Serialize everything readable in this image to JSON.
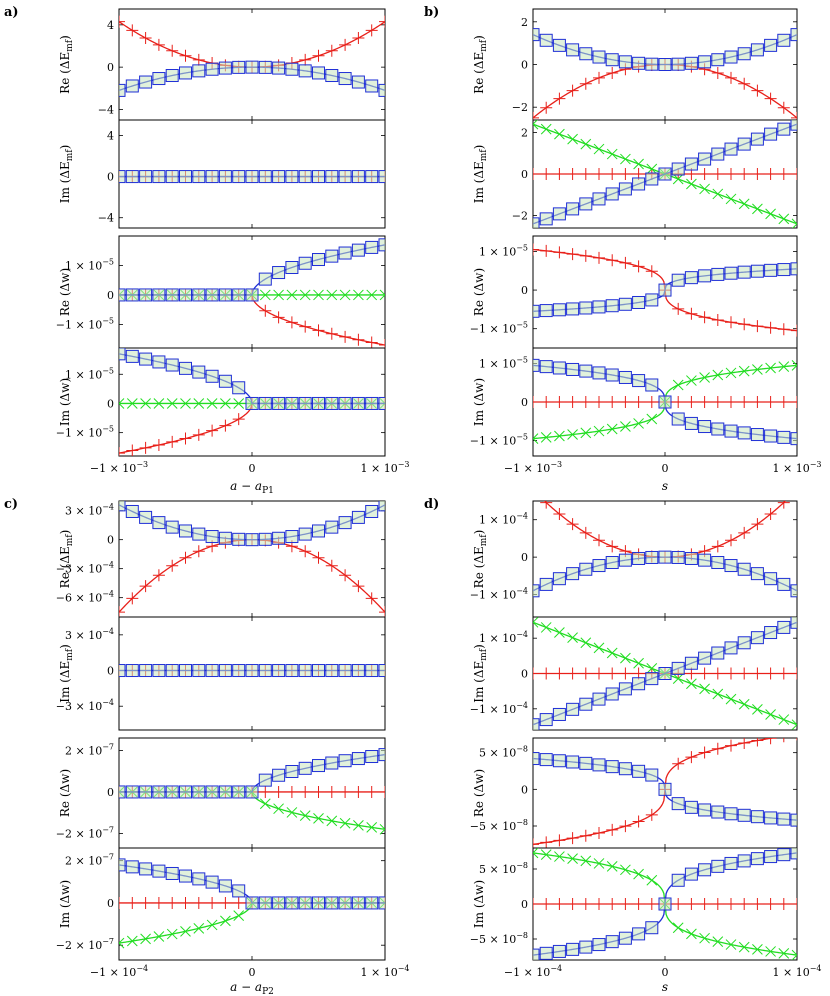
{
  "colors": {
    "red": "#e8201a",
    "blue": "#1f2fd6",
    "green": "#22dd22",
    "marker_fill": "#c8e6c0"
  },
  "chart_data": [
    {
      "panel": "a)",
      "type": "line",
      "xlabel_main": "a − a",
      "xlabel_sub": "P1",
      "xticks": [
        {
          "v": -1,
          "main": "−1 × 10",
          "exp": "−3"
        },
        {
          "v": 0,
          "main": "0",
          "exp": ""
        },
        {
          "v": 1,
          "main": "1 × 10",
          "exp": "−3"
        }
      ],
      "subplots": [
        {
          "ylabel": "Re (ΔE",
          "ysub": "mf",
          "ymin": -5,
          "ymax": 5.5,
          "yticks": [
            {
              "v": 4,
              "main": "4",
              "exp": ""
            },
            {
              "v": 0,
              "main": "0",
              "exp": ""
            },
            {
              "v": -4,
              "main": "−4",
              "exp": ""
            }
          ],
          "series": [
            {
              "color": "red",
              "marker": "plus",
              "kind": "poly",
              "c": [
                0,
                0,
                4.3
              ]
            },
            {
              "color": "blue",
              "marker": "square",
              "kind": "poly",
              "c": [
                0,
                0,
                -2.2
              ]
            }
          ]
        },
        {
          "ylabel": "Im (ΔE",
          "ysub": "mf",
          "ymin": -5,
          "ymax": 5.5,
          "yticks": [
            {
              "v": 4,
              "main": "4",
              "exp": ""
            },
            {
              "v": 0,
              "main": "0",
              "exp": ""
            },
            {
              "v": -4,
              "main": "−4",
              "exp": ""
            }
          ],
          "series": [
            {
              "color": "red",
              "marker": "plus",
              "kind": "poly",
              "c": [
                0,
                0,
                0
              ]
            },
            {
              "color": "blue",
              "marker": "square",
              "kind": "poly",
              "c": [
                0,
                0,
                0
              ]
            }
          ]
        },
        {
          "ylabel": "Re (Δw)",
          "ysub": "",
          "ymin": -1.8,
          "ymax": 2.0,
          "yticks": [
            {
              "v": 1,
              "main": "1 × 10",
              "exp": "−5"
            },
            {
              "v": 0,
              "main": "0",
              "exp": ""
            },
            {
              "v": -1,
              "main": "−1 × 10",
              "exp": "−5"
            }
          ],
          "series": [
            {
              "color": "red",
              "marker": "plus",
              "kind": "sqrt",
              "side": 1,
              "k": -1.7
            },
            {
              "color": "green",
              "marker": "cross",
              "kind": "poly",
              "c": [
                0,
                0,
                0
              ]
            },
            {
              "color": "blue",
              "marker": "square",
              "kind": "sqrt",
              "side": 1,
              "k": 1.7
            }
          ]
        },
        {
          "ylabel": "Im (Δw)",
          "ysub": "",
          "ymin": -1.8,
          "ymax": 1.9,
          "yticks": [
            {
              "v": 1,
              "main": "1 × 10",
              "exp": "−5"
            },
            {
              "v": 0,
              "main": "0",
              "exp": ""
            },
            {
              "v": -1,
              "main": "−1 × 10",
              "exp": "−5"
            }
          ],
          "series": [
            {
              "color": "red",
              "marker": "plus",
              "kind": "sqrt",
              "side": -1,
              "k": -1.7
            },
            {
              "color": "green",
              "marker": "cross",
              "kind": "poly",
              "c": [
                0,
                0,
                0
              ]
            },
            {
              "color": "blue",
              "marker": "square",
              "kind": "sqrt",
              "side": -1,
              "k": 1.7
            }
          ]
        }
      ]
    },
    {
      "panel": "b)",
      "type": "line",
      "xlabel_main": "s",
      "xlabel_sub": "",
      "xticks": [
        {
          "v": -1,
          "main": "−1 × 10",
          "exp": "−3"
        },
        {
          "v": 0,
          "main": "0",
          "exp": ""
        },
        {
          "v": 1,
          "main": "1 × 10",
          "exp": "−3"
        }
      ],
      "subplots": [
        {
          "ylabel": "Re (ΔE",
          "ysub": "mf",
          "ymin": -2.6,
          "ymax": 2.6,
          "yticks": [
            {
              "v": 2,
              "main": "2",
              "exp": ""
            },
            {
              "v": 0,
              "main": "0",
              "exp": ""
            },
            {
              "v": -2,
              "main": "−2",
              "exp": ""
            }
          ],
          "series": [
            {
              "color": "red",
              "marker": "plus",
              "kind": "poly",
              "c": [
                0,
                0,
                -2.5
              ]
            },
            {
              "color": "blue",
              "marker": "square",
              "kind": "poly",
              "c": [
                0,
                0,
                1.4
              ]
            }
          ]
        },
        {
          "ylabel": "Im (ΔE",
          "ysub": "mf",
          "ymin": -2.6,
          "ymax": 2.6,
          "yticks": [
            {
              "v": 2,
              "main": "2",
              "exp": ""
            },
            {
              "v": 0,
              "main": "0",
              "exp": ""
            },
            {
              "v": -2,
              "main": "−2",
              "exp": ""
            }
          ],
          "series": [
            {
              "color": "red",
              "marker": "plus",
              "kind": "poly",
              "c": [
                0,
                0,
                0
              ]
            },
            {
              "color": "green",
              "marker": "cross",
              "kind": "poly",
              "c": [
                0,
                -2.4,
                0
              ]
            },
            {
              "color": "blue",
              "marker": "square",
              "kind": "poly",
              "c": [
                0,
                2.4,
                0
              ]
            }
          ]
        },
        {
          "ylabel": "Re (Δw)",
          "ysub": "",
          "ymin": -1.5,
          "ymax": 1.4,
          "yticks": [
            {
              "v": 1,
              "main": "1 × 10",
              "exp": "−5"
            },
            {
              "v": 0,
              "main": "0",
              "exp": ""
            },
            {
              "v": -1,
              "main": "−1 × 10",
              "exp": "−5"
            }
          ],
          "series": [
            {
              "color": "red",
              "marker": "plus",
              "kind": "cbrt",
              "k": -1.05
            },
            {
              "color": "blue",
              "marker": "square",
              "kind": "cbrt",
              "k": 0.55
            }
          ]
        },
        {
          "ylabel": "Im (Δw)",
          "ysub": "",
          "ymin": -1.4,
          "ymax": 1.4,
          "yticks": [
            {
              "v": 1,
              "main": "1 × 10",
              "exp": "−5"
            },
            {
              "v": 0,
              "main": "0",
              "exp": ""
            },
            {
              "v": -1,
              "main": "−1 × 10",
              "exp": "−5"
            }
          ],
          "series": [
            {
              "color": "red",
              "marker": "plus",
              "kind": "poly",
              "c": [
                0,
                0,
                0
              ]
            },
            {
              "color": "green",
              "marker": "cross",
              "kind": "cbrt",
              "k": 0.95
            },
            {
              "color": "blue",
              "marker": "square",
              "kind": "cbrt",
              "k": -0.95
            }
          ]
        }
      ]
    },
    {
      "panel": "c)",
      "type": "line",
      "xlabel_main": "a − a",
      "xlabel_sub": "P2",
      "xticks": [
        {
          "v": -1,
          "main": "−1 × 10",
          "exp": "−4"
        },
        {
          "v": 0,
          "main": "0",
          "exp": ""
        },
        {
          "v": 1,
          "main": "1 × 10",
          "exp": "−4"
        }
      ],
      "subplots": [
        {
          "ylabel": "Re (ΔE",
          "ysub": "mf",
          "ymin": -8,
          "ymax": 4,
          "yticks": [
            {
              "v": 3,
              "main": "3 × 10",
              "exp": "−4"
            },
            {
              "v": 0,
              "main": "0",
              "exp": ""
            },
            {
              "v": -3,
              "main": "−3 × 10",
              "exp": "−4"
            },
            {
              "v": -6,
              "main": "−6 × 10",
              "exp": "−4"
            }
          ],
          "series": [
            {
              "color": "red",
              "marker": "plus",
              "kind": "poly",
              "c": [
                0,
                0,
                -7.5
              ]
            },
            {
              "color": "blue",
              "marker": "square",
              "kind": "poly",
              "c": [
                0,
                0,
                3.6
              ]
            }
          ]
        },
        {
          "ylabel": "Im (ΔE",
          "ysub": "mf",
          "ymin": -5,
          "ymax": 4.5,
          "yticks": [
            {
              "v": 3,
              "main": "3 × 10",
              "exp": "−4"
            },
            {
              "v": 0,
              "main": "0",
              "exp": ""
            },
            {
              "v": -3,
              "main": "−3 × 10",
              "exp": "−4"
            }
          ],
          "series": [
            {
              "color": "red",
              "marker": "plus",
              "kind": "poly",
              "c": [
                0,
                0,
                0
              ]
            },
            {
              "color": "blue",
              "marker": "square",
              "kind": "poly",
              "c": [
                0,
                0,
                0
              ]
            }
          ]
        },
        {
          "ylabel": "Re (Δw)",
          "ysub": "",
          "ymin": -2.7,
          "ymax": 2.6,
          "yticks": [
            {
              "v": 2,
              "main": "2 × 10",
              "exp": "−7"
            },
            {
              "v": 0,
              "main": "0",
              "exp": ""
            },
            {
              "v": -2,
              "main": "−2 × 10",
              "exp": "−7"
            }
          ],
          "series": [
            {
              "color": "red",
              "marker": "plus",
              "kind": "poly",
              "c": [
                0,
                0,
                0
              ]
            },
            {
              "color": "green",
              "marker": "cross",
              "kind": "sqrt",
              "side": 1,
              "k": -1.8
            },
            {
              "color": "blue",
              "marker": "square",
              "kind": "sqrt",
              "side": 1,
              "k": 1.8
            }
          ]
        },
        {
          "ylabel": "Im (Δw)",
          "ysub": "",
          "ymin": -2.7,
          "ymax": 2.6,
          "yticks": [
            {
              "v": 2,
              "main": "2 × 10",
              "exp": "−7"
            },
            {
              "v": 0,
              "main": "0",
              "exp": ""
            },
            {
              "v": -2,
              "main": "−2 × 10",
              "exp": "−7"
            }
          ],
          "series": [
            {
              "color": "red",
              "marker": "plus",
              "kind": "poly",
              "c": [
                0,
                0,
                0
              ]
            },
            {
              "color": "green",
              "marker": "cross",
              "kind": "sqrt",
              "side": -1,
              "k": -1.9
            },
            {
              "color": "blue",
              "marker": "square",
              "kind": "sqrt",
              "side": -1,
              "k": 1.8
            }
          ]
        }
      ]
    },
    {
      "panel": "d)",
      "type": "line",
      "xlabel_main": "s",
      "xlabel_sub": "",
      "xticks": [
        {
          "v": -1,
          "main": "−1 × 10",
          "exp": "−4"
        },
        {
          "v": 0,
          "main": "0",
          "exp": ""
        },
        {
          "v": 1,
          "main": "1 × 10",
          "exp": "−4"
        }
      ],
      "subplots": [
        {
          "ylabel": "Re (ΔE",
          "ysub": "mf",
          "ymin": -1.6,
          "ymax": 1.5,
          "yticks": [
            {
              "v": 1,
              "main": "1 × 10",
              "exp": "−4"
            },
            {
              "v": 0,
              "main": "0",
              "exp": ""
            },
            {
              "v": -1,
              "main": "−1 × 10",
              "exp": "−4"
            }
          ],
          "series": [
            {
              "color": "red",
              "marker": "plus",
              "kind": "poly",
              "c": [
                0,
                0,
                1.8
              ]
            },
            {
              "color": "blue",
              "marker": "square",
              "kind": "poly",
              "c": [
                0,
                0,
                -0.9
              ]
            }
          ]
        },
        {
          "ylabel": "Im (ΔE",
          "ysub": "mf",
          "ymin": -1.6,
          "ymax": 1.6,
          "yticks": [
            {
              "v": 1,
              "main": "1 × 10",
              "exp": "−4"
            },
            {
              "v": 0,
              "main": "0",
              "exp": ""
            },
            {
              "v": -1,
              "main": "−1 × 10",
              "exp": "−4"
            }
          ],
          "series": [
            {
              "color": "red",
              "marker": "plus",
              "kind": "poly",
              "c": [
                0,
                0,
                0
              ]
            },
            {
              "color": "green",
              "marker": "cross",
              "kind": "poly",
              "c": [
                0,
                -1.45,
                0
              ]
            },
            {
              "color": "blue",
              "marker": "square",
              "kind": "poly",
              "c": [
                0,
                1.45,
                0
              ]
            }
          ]
        },
        {
          "ylabel": "Re (Δw)",
          "ysub": "",
          "ymin": -8,
          "ymax": 7,
          "yticks": [
            {
              "v": 5,
              "main": "5 × 10",
              "exp": "−8"
            },
            {
              "v": 0,
              "main": "0",
              "exp": ""
            },
            {
              "v": -5,
              "main": "−5 × 10",
              "exp": "−8"
            }
          ],
          "series": [
            {
              "color": "red",
              "marker": "plus",
              "kind": "cbrt",
              "k": 7.5
            },
            {
              "color": "blue",
              "marker": "square",
              "kind": "cbrt",
              "k": -4.2
            }
          ]
        },
        {
          "ylabel": "Im (Δw)",
          "ysub": "",
          "ymin": -8,
          "ymax": 8,
          "yticks": [
            {
              "v": 5,
              "main": "5 × 10",
              "exp": "−8"
            },
            {
              "v": 0,
              "main": "0",
              "exp": ""
            },
            {
              "v": -5,
              "main": "−5 × 10",
              "exp": "−8"
            }
          ],
          "series": [
            {
              "color": "red",
              "marker": "plus",
              "kind": "poly",
              "c": [
                0,
                0,
                0
              ]
            },
            {
              "color": "green",
              "marker": "cross",
              "kind": "cbrt",
              "k": -7.3
            },
            {
              "color": "blue",
              "marker": "square",
              "kind": "cbrt",
              "k": 7.3
            }
          ]
        }
      ]
    }
  ]
}
